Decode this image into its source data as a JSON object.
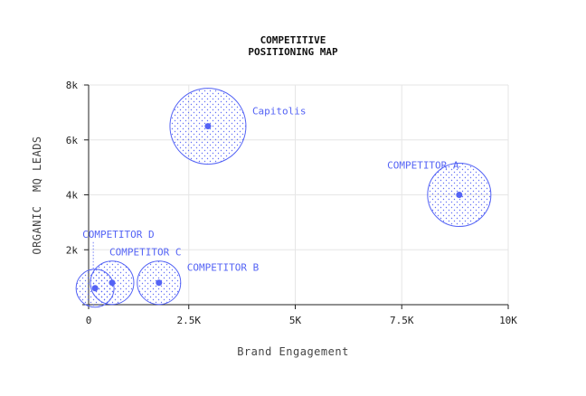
{
  "chart_data": {
    "type": "bubble",
    "title": "COMPETITIVE\nPOSITIONING MAP",
    "xlabel": "Brand Engagement",
    "ylabel": "ORGANIC  MQ LEADS",
    "xlim": [
      0,
      10000
    ],
    "ylim": [
      0,
      8000
    ],
    "x_ticks": [
      {
        "value": 0,
        "label": "0"
      },
      {
        "value": 2500,
        "label": "2.5K"
      },
      {
        "value": 5000,
        "label": "5K"
      },
      {
        "value": 7500,
        "label": "7.5K"
      },
      {
        "value": 10000,
        "label": "10K"
      }
    ],
    "y_ticks": [
      {
        "value": 2000,
        "label": "2k"
      },
      {
        "value": 4000,
        "label": "4k"
      },
      {
        "value": 6000,
        "label": "6k"
      },
      {
        "value": 8000,
        "label": "8k"
      }
    ],
    "grid": true,
    "points": [
      {
        "name": "Capitolis",
        "x": 2950,
        "y": 6500,
        "size": 42,
        "label_pos": "right"
      },
      {
        "name": "COMPETITOR A",
        "x": 8850,
        "y": 4000,
        "size": 35,
        "label_pos": "top-left"
      },
      {
        "name": "COMPETITOR B",
        "x": 1800,
        "y": 800,
        "size": 24,
        "label_pos": "right"
      },
      {
        "name": "COMPETITOR C",
        "x": 700,
        "y": 800,
        "size": 24,
        "label_pos": "top-right"
      },
      {
        "name": "COMPETITOR D",
        "x": 300,
        "y": 600,
        "size": 21,
        "label_pos": "top"
      }
    ],
    "color": "#5463f5"
  }
}
